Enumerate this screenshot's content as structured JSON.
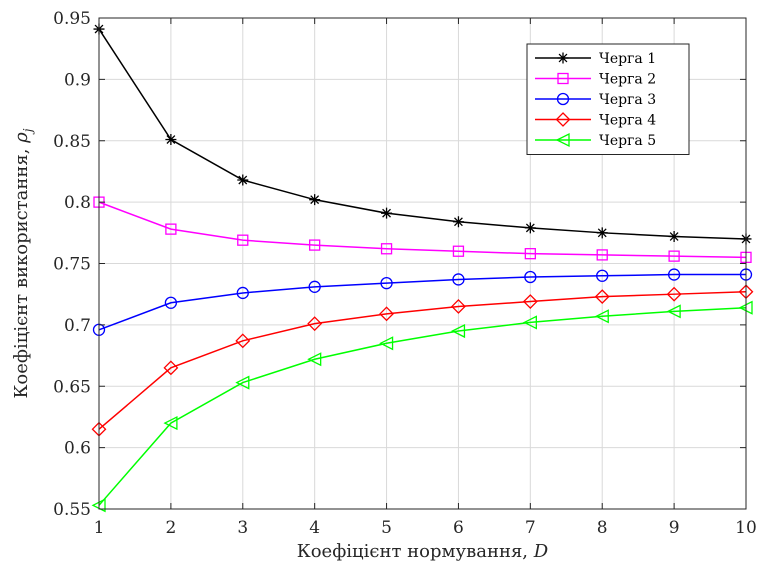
{
  "chart_data": {
    "type": "line",
    "xlabel": "Коефіцієнт нормування,",
    "xlabel_symbol": "D",
    "ylabel": "Коефіцієнт використання,",
    "ylabel_symbol": "ρ",
    "ylabel_symbol_subscript": "j",
    "xlim": [
      1,
      10
    ],
    "ylim": [
      0.55,
      0.95
    ],
    "xticks": [
      1,
      2,
      3,
      4,
      5,
      6,
      7,
      8,
      9,
      10
    ],
    "xtick_labels": [
      "1",
      "2",
      "3",
      "4",
      "5",
      "6",
      "7",
      "8",
      "9",
      "10"
    ],
    "yticks": [
      0.55,
      0.6,
      0.65,
      0.7,
      0.75,
      0.8,
      0.85,
      0.9,
      0.95
    ],
    "ytick_labels": [
      "0.55",
      "0.6",
      "0.65",
      "0.7",
      "0.75",
      "0.8",
      "0.85",
      "0.9",
      "0.95"
    ],
    "grid": true,
    "legend_position": "top-right",
    "x": [
      1,
      2,
      3,
      4,
      5,
      6,
      7,
      8,
      9,
      10
    ],
    "series": [
      {
        "name": "Черга 1",
        "color": "#000000",
        "marker": "asterisk",
        "values": [
          0.941,
          0.851,
          0.818,
          0.802,
          0.791,
          0.784,
          0.779,
          0.775,
          0.772,
          0.77
        ]
      },
      {
        "name": "Черга 2",
        "color": "#ff00ff",
        "marker": "square",
        "values": [
          0.8,
          0.778,
          0.769,
          0.765,
          0.762,
          0.76,
          0.758,
          0.757,
          0.756,
          0.755
        ]
      },
      {
        "name": "Черга 3",
        "color": "#0000ff",
        "marker": "circle",
        "values": [
          0.696,
          0.718,
          0.726,
          0.731,
          0.734,
          0.737,
          0.739,
          0.74,
          0.741,
          0.741
        ]
      },
      {
        "name": "Черга 4",
        "color": "#ff0000",
        "marker": "diamond",
        "values": [
          0.615,
          0.665,
          0.687,
          0.701,
          0.709,
          0.715,
          0.719,
          0.723,
          0.725,
          0.727
        ]
      },
      {
        "name": "Черга 5",
        "color": "#00ff00",
        "marker": "triangle-left",
        "values": [
          0.553,
          0.62,
          0.653,
          0.672,
          0.685,
          0.695,
          0.702,
          0.707,
          0.711,
          0.714
        ]
      }
    ]
  }
}
